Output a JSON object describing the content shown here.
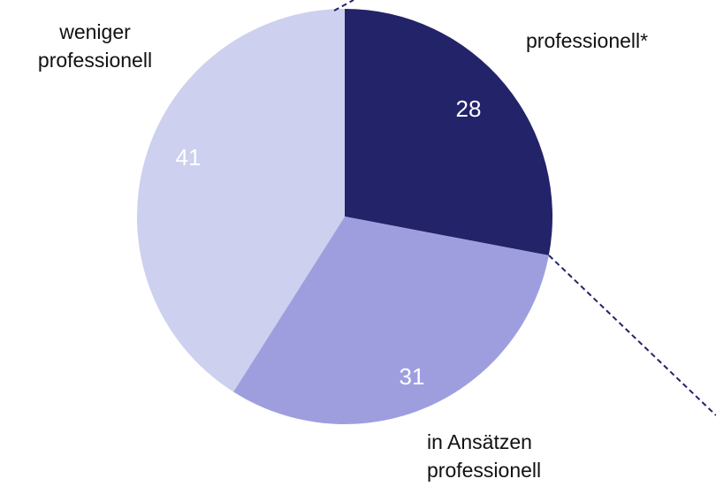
{
  "chart_data": {
    "type": "pie",
    "categories": [
      "professionell*",
      "in Ansätzen professionell",
      "weniger professionell"
    ],
    "values": [
      28,
      31,
      41
    ],
    "colors": [
      "#23236a",
      "#9e9edf",
      "#cdd0ee"
    ]
  }
}
